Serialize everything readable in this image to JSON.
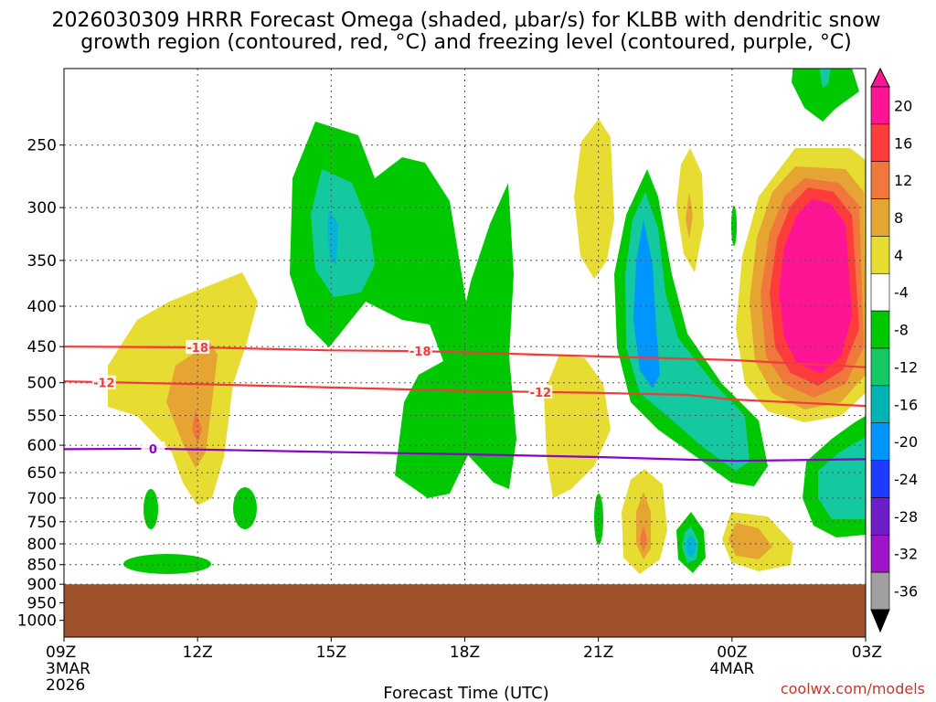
{
  "chart_data": {
    "type": "heatmap",
    "title_line1": "2026030309 HRRR Forecast Omega (shaded, µbar/s) for KLBB with dendritic snow",
    "title_line2": "growth region (contoured, red, °C) and freezing level (contoured, purple, °C)",
    "xlabel": "Forecast Time (UTC)",
    "credit": "coolwx.com/models",
    "x_hours": [
      0,
      3,
      6,
      9,
      12,
      15,
      18
    ],
    "xticks": [
      {
        "h": 0,
        "label": "09Z",
        "sub1": "3MAR",
        "sub2": "2026"
      },
      {
        "h": 3,
        "label": "12Z",
        "sub1": "",
        "sub2": ""
      },
      {
        "h": 6,
        "label": "15Z",
        "sub1": "",
        "sub2": ""
      },
      {
        "h": 9,
        "label": "18Z",
        "sub1": "",
        "sub2": ""
      },
      {
        "h": 12,
        "label": "21Z",
        "sub1": "",
        "sub2": ""
      },
      {
        "h": 15,
        "label": "00Z",
        "sub1": "4MAR",
        "sub2": ""
      },
      {
        "h": 18,
        "label": "03Z",
        "sub1": "",
        "sub2": ""
      }
    ],
    "y_pressure_range": [
      1050,
      200
    ],
    "yticks": [
      250,
      300,
      350,
      400,
      450,
      500,
      550,
      600,
      650,
      700,
      750,
      800,
      850,
      900,
      950,
      1000
    ],
    "terrain_top_hPa": 900,
    "colorbar": {
      "labels": [
        "20",
        "16",
        "12",
        "8",
        "4",
        "-4",
        "-8",
        "-12",
        "-16",
        "-20",
        "-24",
        "-28",
        "-32",
        "-36"
      ],
      "colors": [
        "#ff1493",
        "#ff3c3c",
        "#f0783c",
        "#e6a532",
        "#e6dc32",
        "#ffffff",
        "#00c800",
        "#14c864",
        "#00b4b4",
        "#0096ff",
        "#1e3cff",
        "#6e1ec8",
        "#a014c8",
        "#a0a0a0"
      ]
    },
    "series": [
      {
        "name": "-18 °C isotherm",
        "color": "#f03c3c",
        "points": [
          [
            0,
            450
          ],
          [
            3,
            451
          ],
          [
            6,
            455
          ],
          [
            8,
            456
          ],
          [
            12,
            463
          ],
          [
            15,
            468
          ],
          [
            18,
            478
          ]
        ],
        "labels": [
          {
            "h": 3,
            "p": 451,
            "text": "-18"
          },
          {
            "h": 8,
            "p": 456,
            "text": "-18"
          }
        ]
      },
      {
        "name": "-12 °C isotherm",
        "color": "#f03c3c",
        "points": [
          [
            0,
            498
          ],
          [
            3,
            502
          ],
          [
            6,
            507
          ],
          [
            9,
            512
          ],
          [
            12,
            515
          ],
          [
            14,
            518
          ],
          [
            15,
            525
          ],
          [
            18,
            535
          ]
        ],
        "labels": [
          {
            "h": 0.9,
            "p": 500,
            "text": "-12"
          },
          {
            "h": 10.7,
            "p": 514,
            "text": "-12"
          }
        ]
      },
      {
        "name": "Freezing level (0 °C)",
        "color": "#8c00c8",
        "points": [
          [
            0,
            607
          ],
          [
            2,
            606
          ],
          [
            6,
            612
          ],
          [
            9,
            616
          ],
          [
            12,
            621
          ],
          [
            15,
            628
          ],
          [
            18,
            625
          ]
        ],
        "labels": [
          {
            "h": 2,
            "p": 606,
            "text": "0"
          }
        ]
      }
    ],
    "omega_regions": [
      {
        "name": "upper upward-motion core",
        "center_h": 5.9,
        "center_p": 330,
        "peak": -12
      },
      {
        "name": "mid-level ascent band",
        "center_h": 9.0,
        "center_p": 500,
        "peak": -8
      },
      {
        "name": "slanted ascent column",
        "center_h": 13.4,
        "center_p": 420,
        "peak": -16
      },
      {
        "name": "strong subsidence",
        "center_h": 16.8,
        "center_p": 390,
        "peak": 20
      },
      {
        "name": "descent near 12Z",
        "center_h": 2.9,
        "center_p": 560,
        "peak": 10
      },
      {
        "name": "low-level descent",
        "center_h": 13.0,
        "center_p": 790,
        "peak": 8
      },
      {
        "name": "low-level ascent",
        "center_h": 14.0,
        "center_p": 800,
        "peak": -12
      }
    ]
  }
}
